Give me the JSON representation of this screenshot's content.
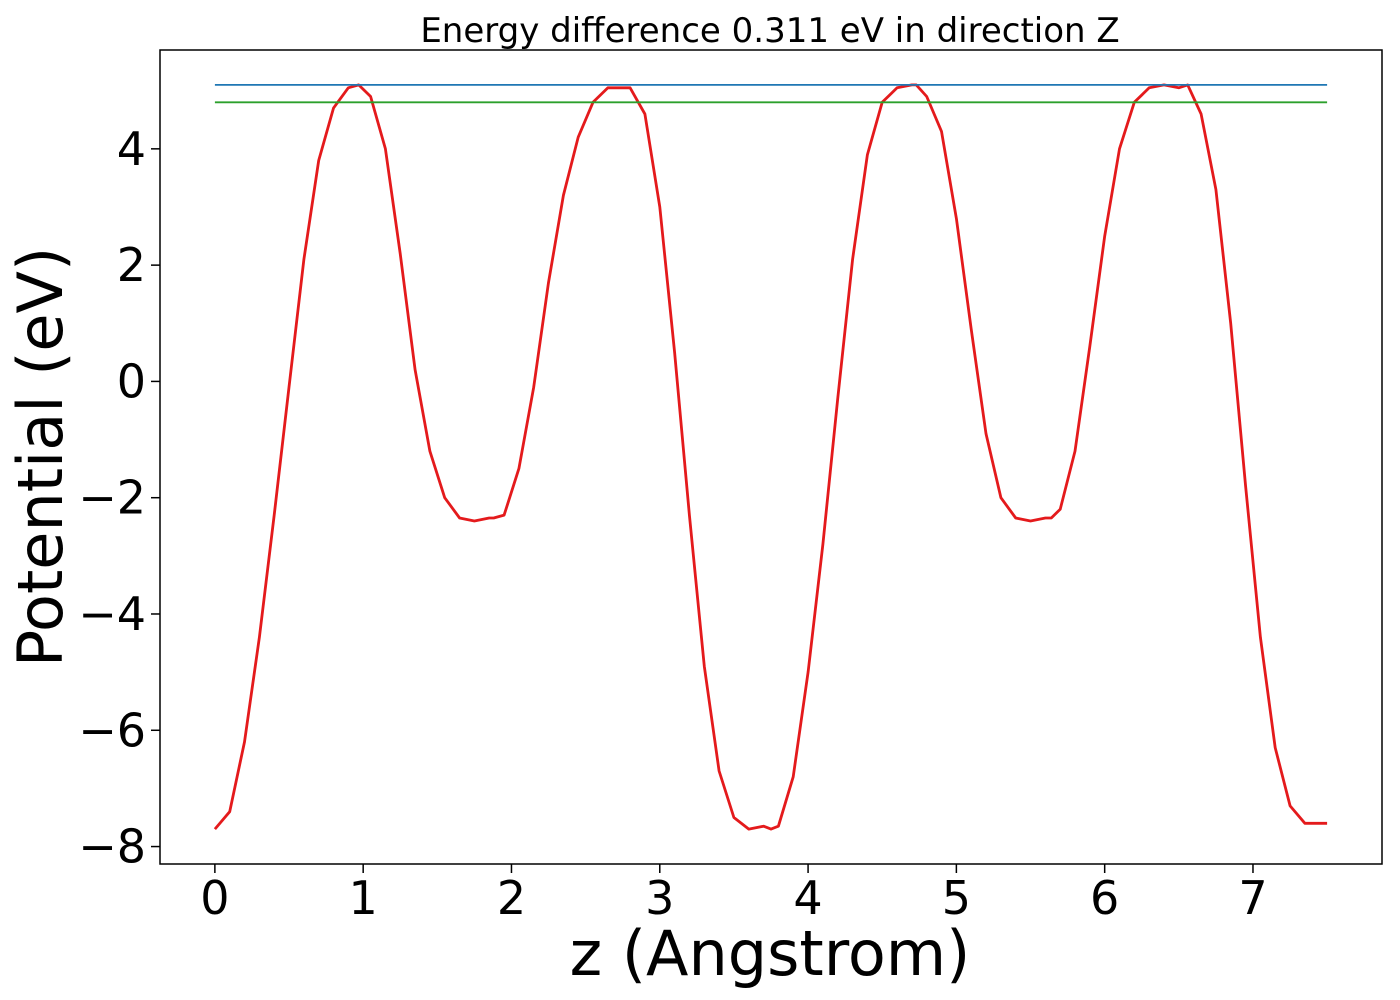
{
  "chart_data": {
    "type": "line",
    "title": "Energy difference 0.311 eV in direction Z",
    "xlabel": "z (Angstrom)",
    "ylabel": "Potential (eV)",
    "xlim": [
      -0.37,
      7.87
    ],
    "ylim": [
      -8.3,
      5.7
    ],
    "xticks": [
      0,
      1,
      2,
      3,
      4,
      5,
      6,
      7
    ],
    "xtick_labels": [
      "0",
      "1",
      "2",
      "3",
      "4",
      "5",
      "6",
      "7"
    ],
    "yticks": [
      -8,
      -6,
      -4,
      -2,
      0,
      2,
      4
    ],
    "ytick_labels": [
      "−8",
      "−6",
      "−4",
      "−2",
      "0",
      "2",
      "4"
    ],
    "grid": false,
    "series": [
      {
        "color": "#e41a1c",
        "x": [
          0.0,
          0.1,
          0.2,
          0.3,
          0.4,
          0.5,
          0.6,
          0.7,
          0.8,
          0.9,
          0.97,
          1.05,
          1.15,
          1.25,
          1.35,
          1.45,
          1.55,
          1.65,
          1.75,
          1.85,
          1.88,
          1.95,
          2.05,
          2.15,
          2.25,
          2.35,
          2.45,
          2.55,
          2.65,
          2.75,
          2.8,
          2.9,
          3.0,
          3.1,
          3.2,
          3.3,
          3.4,
          3.5,
          3.6,
          3.7,
          3.75,
          3.8,
          3.9,
          4.0,
          4.1,
          4.2,
          4.3,
          4.4,
          4.5,
          4.6,
          4.7,
          4.73,
          4.8,
          4.9,
          5.0,
          5.1,
          5.2,
          5.3,
          5.4,
          5.5,
          5.6,
          5.64,
          5.7,
          5.8,
          5.9,
          6.0,
          6.1,
          6.2,
          6.3,
          6.4,
          6.5,
          6.56,
          6.65,
          6.75,
          6.85,
          6.95,
          7.05,
          7.15,
          7.25,
          7.35,
          7.45,
          7.5
        ],
        "y": [
          -7.7,
          -7.4,
          -6.2,
          -4.4,
          -2.3,
          -0.1,
          2.1,
          3.8,
          4.7,
          5.05,
          5.1,
          4.9,
          4.0,
          2.2,
          0.2,
          -1.2,
          -2.0,
          -2.35,
          -2.4,
          -2.35,
          -2.35,
          -2.3,
          -1.5,
          -0.1,
          1.7,
          3.2,
          4.2,
          4.8,
          5.05,
          5.05,
          5.05,
          4.6,
          3.0,
          0.5,
          -2.3,
          -4.9,
          -6.7,
          -7.5,
          -7.7,
          -7.65,
          -7.7,
          -7.65,
          -6.8,
          -5.0,
          -2.8,
          -0.3,
          2.1,
          3.9,
          4.8,
          5.05,
          5.1,
          5.1,
          4.9,
          4.3,
          2.8,
          0.9,
          -0.9,
          -2.0,
          -2.35,
          -2.4,
          -2.35,
          -2.35,
          -2.2,
          -1.2,
          0.6,
          2.5,
          4.0,
          4.8,
          5.05,
          5.1,
          5.05,
          5.1,
          4.6,
          3.3,
          1.0,
          -1.8,
          -4.4,
          -6.3,
          -7.3,
          -7.6,
          -7.6,
          -7.6
        ]
      },
      {
        "color": "#1f77b4",
        "x": [
          0.0,
          7.5
        ],
        "y": [
          5.1,
          5.1
        ]
      },
      {
        "color": "#2ca02c",
        "x": [
          0.0,
          7.5
        ],
        "y": [
          4.8,
          4.8
        ]
      }
    ]
  }
}
